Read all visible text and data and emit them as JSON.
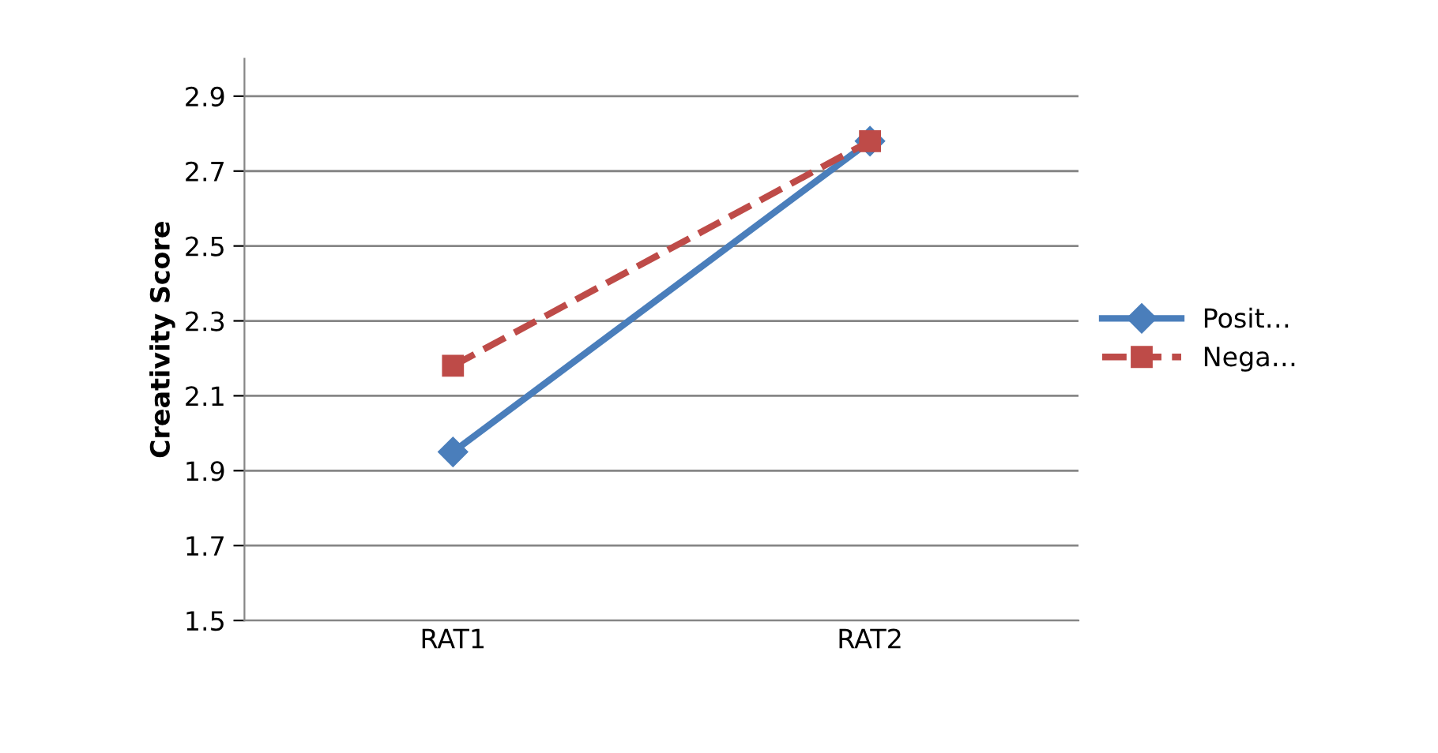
{
  "chart_data": {
    "type": "line",
    "ylabel": "Creativity Score",
    "categories": [
      "RAT1",
      "RAT2"
    ],
    "series": [
      {
        "name": "Posit…",
        "color": "#4a7ebb",
        "values": [
          1.95,
          2.78
        ],
        "marker": "diamond",
        "line_style": "solid"
      },
      {
        "name": "Nega…",
        "color": "#be4b48",
        "values": [
          2.18,
          2.78
        ],
        "marker": "square",
        "line_style": "dashed"
      }
    ],
    "ylim": [
      1.5,
      3.0
    ],
    "yticks": [
      1.5,
      1.7,
      1.9,
      2.1,
      2.3,
      2.5,
      2.7,
      2.9
    ],
    "grid": "y",
    "legend": "right"
  }
}
